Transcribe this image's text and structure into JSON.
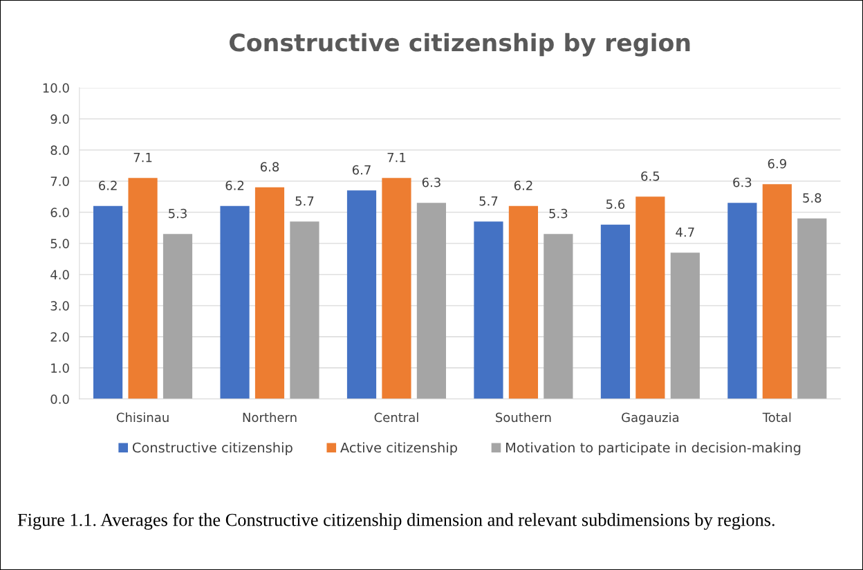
{
  "chart_data": {
    "type": "bar",
    "title": "Constructive citizenship by region",
    "categories": [
      "Chisinau",
      "Northern",
      "Central",
      "Southern",
      "Gagauzia",
      "Total"
    ],
    "series": [
      {
        "name": "Constructive citizenship",
        "color": "#4472c4",
        "values": [
          6.2,
          6.2,
          6.7,
          5.7,
          5.6,
          6.3
        ]
      },
      {
        "name": "Active citizenship",
        "color": "#ed7d31",
        "values": [
          7.1,
          6.8,
          7.1,
          6.2,
          6.5,
          6.9
        ]
      },
      {
        "name": "Motivation to participate in decision-making",
        "color": "#a5a5a5",
        "values": [
          5.3,
          5.7,
          6.3,
          5.3,
          4.7,
          5.8
        ]
      }
    ],
    "ylim": [
      0,
      10
    ],
    "yticks": [
      {
        "value": 0,
        "label": "0.0"
      },
      {
        "value": 1,
        "label": "1.0"
      },
      {
        "value": 2,
        "label": "2.0"
      },
      {
        "value": 3,
        "label": "3.0"
      },
      {
        "value": 4,
        "label": "4.0"
      },
      {
        "value": 5,
        "label": "5.0"
      },
      {
        "value": 6,
        "label": "6.0"
      },
      {
        "value": 7,
        "label": "7.0"
      },
      {
        "value": 8,
        "label": "8.0"
      },
      {
        "value": 9,
        "label": "9.0"
      },
      {
        "value": 10,
        "label": "10.0"
      }
    ],
    "grid": "y",
    "legend": "bottom",
    "data_labels": true,
    "annotations": [
      "Figure 1.1. Averages for the Constructive citizenship dimension and relevant subdimensions by regions."
    ]
  }
}
